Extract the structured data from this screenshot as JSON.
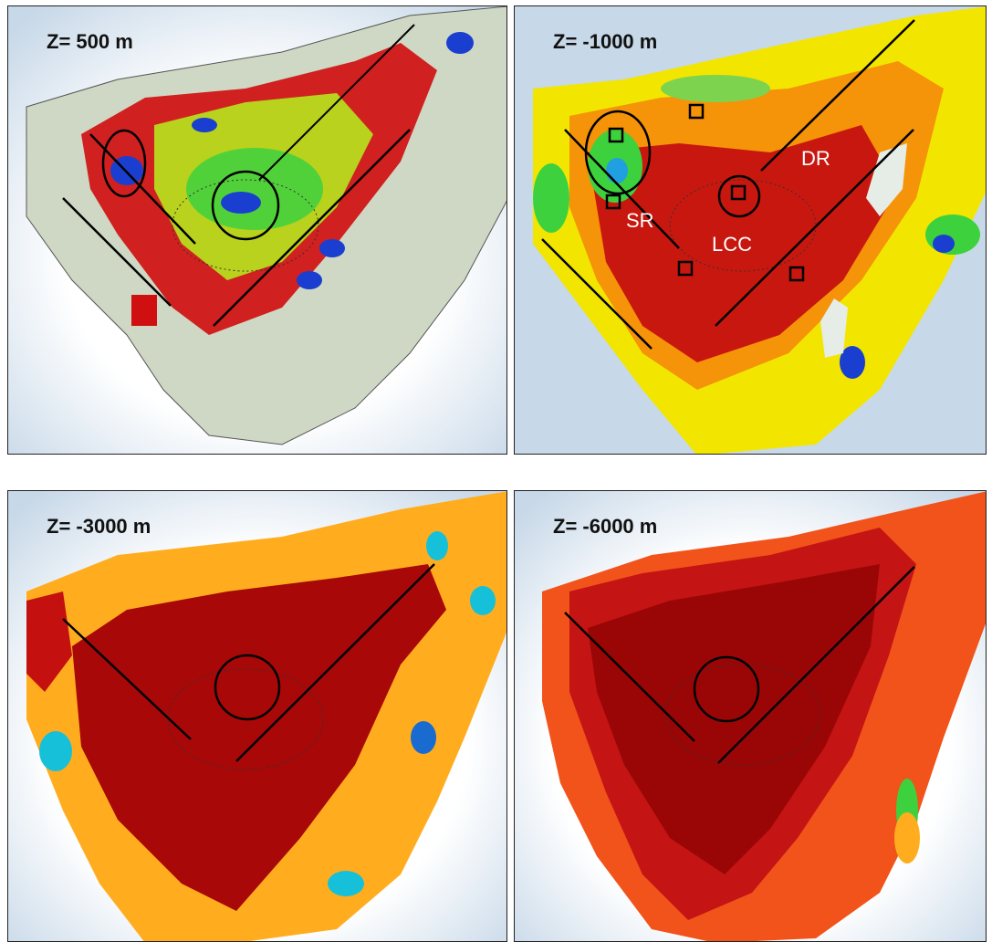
{
  "panels": [
    {
      "label": "Z= 500 m"
    },
    {
      "label": "Z= -1000 m",
      "annotations": [
        "SR",
        "LCC",
        "DR"
      ]
    },
    {
      "label": "Z= -3000 m"
    },
    {
      "label": "Z= -6000 m"
    }
  ],
  "colors": {
    "sea_far": "#d9e6f0",
    "sea_near": "#ffffff",
    "land": "#cdd7c1",
    "high": "#8b0000",
    "mid_high": "#ff4500",
    "mid": "#ffa500",
    "yellow": "#ffff00",
    "green": "#7cfc00",
    "cyan": "#00ffff",
    "blue": "#0000cd"
  }
}
